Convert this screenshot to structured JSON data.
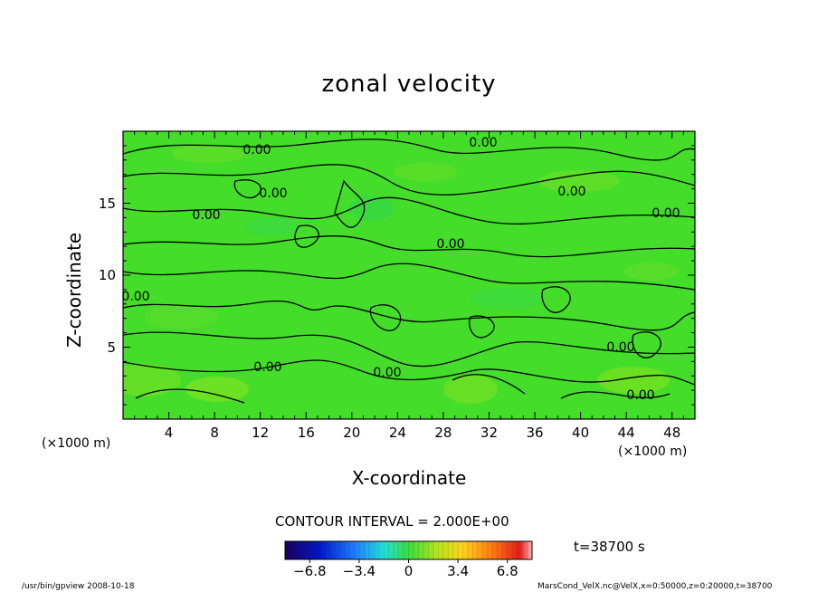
{
  "chart_data": {
    "type": "heatmap",
    "title": "zonal velocity",
    "xlabel": "X-coordinate",
    "ylabel": "Z-coordinate",
    "x_unit": "(×1000 m)",
    "y_unit": "(×1000 m)",
    "xlim": [
      0,
      50
    ],
    "ylim": [
      0,
      20
    ],
    "x_ticks": [
      4,
      8,
      12,
      16,
      20,
      24,
      28,
      32,
      36,
      40,
      44,
      48
    ],
    "y_ticks": [
      5,
      10,
      15
    ],
    "contour_interval_label": "CONTOUR INTERVAL = 2.000E+00",
    "contour_labels": [
      "0.00",
      "0.00",
      "0.00",
      "0.00",
      "0.00",
      "0.00",
      "0.00",
      "0.00",
      "0.00",
      "0.00",
      "0.00",
      "0.00"
    ],
    "time_label": "t=38700 s",
    "colorbar": {
      "min": -8.5,
      "max": 8.5,
      "ticks": [
        "−6.8",
        "−3.4",
        "0",
        "3.4",
        "6.8"
      ],
      "tick_values": [
        -6.8,
        -3.4,
        0,
        3.4,
        6.8
      ]
    },
    "field_description_value_range": [
      -1.5,
      1.5
    ]
  },
  "footer": {
    "left": "/usr/bin/gpview   2008-10-18",
    "right": "MarsCond_VelX.nc@VelX,x=0:50000,z=0:20000,t=38700"
  },
  "colors": {
    "field_base": "#44dd2a",
    "contour": "#000000"
  }
}
